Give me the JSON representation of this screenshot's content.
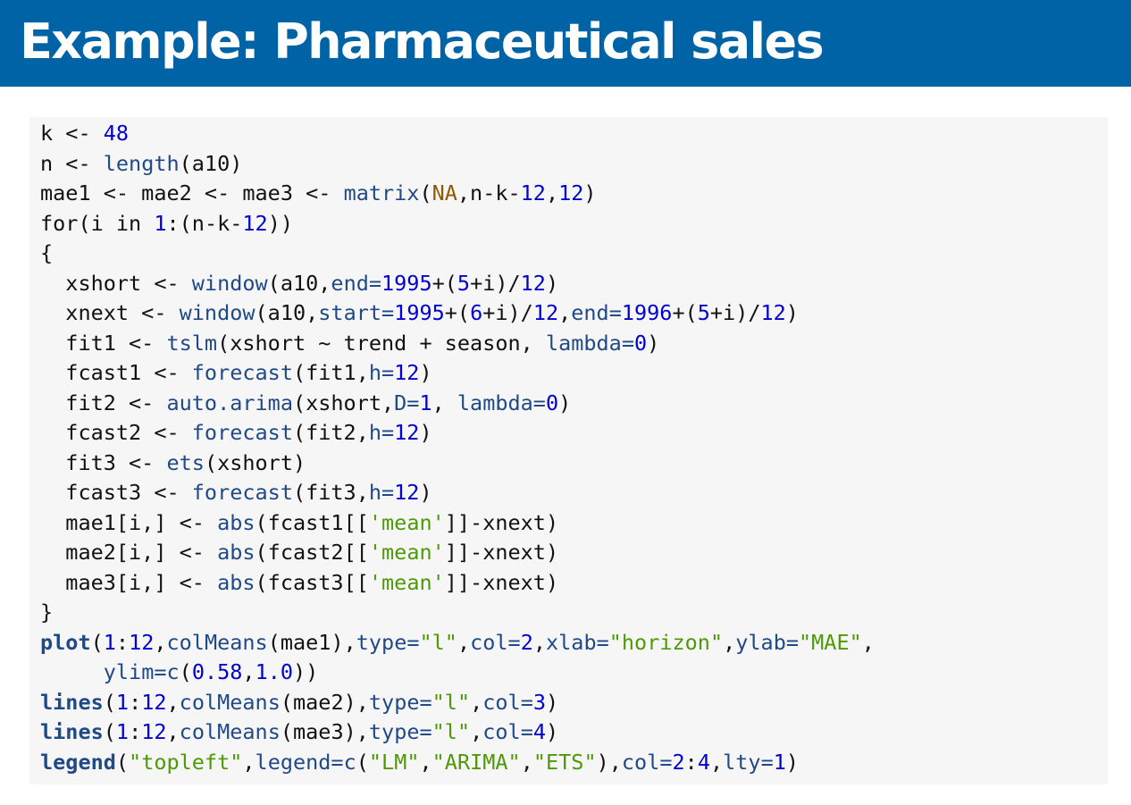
{
  "title": "Example: Pharmaceutical sales",
  "code": {
    "lines": [
      [
        {
          "t": "k <- ",
          "c": ""
        },
        {
          "t": "48",
          "c": "num"
        }
      ],
      [
        {
          "t": "n <- ",
          "c": ""
        },
        {
          "t": "length",
          "c": "fn"
        },
        {
          "t": "(a10)",
          "c": ""
        }
      ],
      [
        {
          "t": "mae1 <- mae2 <- mae3 <- ",
          "c": ""
        },
        {
          "t": "matrix",
          "c": "fn"
        },
        {
          "t": "(",
          "c": ""
        },
        {
          "t": "NA",
          "c": "na"
        },
        {
          "t": ",n-k-",
          "c": ""
        },
        {
          "t": "12",
          "c": "num"
        },
        {
          "t": ",",
          "c": ""
        },
        {
          "t": "12",
          "c": "num"
        },
        {
          "t": ")",
          "c": ""
        }
      ],
      [
        {
          "t": "for(i in ",
          "c": ""
        },
        {
          "t": "1",
          "c": "num"
        },
        {
          "t": ":(n-k-",
          "c": ""
        },
        {
          "t": "12",
          "c": "num"
        },
        {
          "t": "))",
          "c": ""
        }
      ],
      [
        {
          "t": "{",
          "c": ""
        }
      ],
      [
        {
          "t": "  xshort <- ",
          "c": ""
        },
        {
          "t": "window",
          "c": "fn"
        },
        {
          "t": "(a10,",
          "c": ""
        },
        {
          "t": "end=",
          "c": "arg"
        },
        {
          "t": "1995",
          "c": "num"
        },
        {
          "t": "+(",
          "c": ""
        },
        {
          "t": "5",
          "c": "num"
        },
        {
          "t": "+i)/",
          "c": ""
        },
        {
          "t": "12",
          "c": "num"
        },
        {
          "t": ")",
          "c": ""
        }
      ],
      [
        {
          "t": "  xnext <- ",
          "c": ""
        },
        {
          "t": "window",
          "c": "fn"
        },
        {
          "t": "(a10,",
          "c": ""
        },
        {
          "t": "start=",
          "c": "arg"
        },
        {
          "t": "1995",
          "c": "num"
        },
        {
          "t": "+(",
          "c": ""
        },
        {
          "t": "6",
          "c": "num"
        },
        {
          "t": "+i)/",
          "c": ""
        },
        {
          "t": "12",
          "c": "num"
        },
        {
          "t": ",",
          "c": ""
        },
        {
          "t": "end=",
          "c": "arg"
        },
        {
          "t": "1996",
          "c": "num"
        },
        {
          "t": "+(",
          "c": ""
        },
        {
          "t": "5",
          "c": "num"
        },
        {
          "t": "+i)/",
          "c": ""
        },
        {
          "t": "12",
          "c": "num"
        },
        {
          "t": ")",
          "c": ""
        }
      ],
      [
        {
          "t": "  fit1 <- ",
          "c": ""
        },
        {
          "t": "tslm",
          "c": "fn"
        },
        {
          "t": "(xshort ~ trend + season, ",
          "c": ""
        },
        {
          "t": "lambda=",
          "c": "arg"
        },
        {
          "t": "0",
          "c": "num"
        },
        {
          "t": ")",
          "c": ""
        }
      ],
      [
        {
          "t": "  fcast1 <- ",
          "c": ""
        },
        {
          "t": "forecast",
          "c": "fn"
        },
        {
          "t": "(fit1,",
          "c": ""
        },
        {
          "t": "h=",
          "c": "arg"
        },
        {
          "t": "12",
          "c": "num"
        },
        {
          "t": ")",
          "c": ""
        }
      ],
      [
        {
          "t": "  fit2 <- ",
          "c": ""
        },
        {
          "t": "auto.arima",
          "c": "fn"
        },
        {
          "t": "(xshort,",
          "c": ""
        },
        {
          "t": "D=",
          "c": "arg"
        },
        {
          "t": "1",
          "c": "num"
        },
        {
          "t": ", ",
          "c": ""
        },
        {
          "t": "lambda=",
          "c": "arg"
        },
        {
          "t": "0",
          "c": "num"
        },
        {
          "t": ")",
          "c": ""
        }
      ],
      [
        {
          "t": "  fcast2 <- ",
          "c": ""
        },
        {
          "t": "forecast",
          "c": "fn"
        },
        {
          "t": "(fit2,",
          "c": ""
        },
        {
          "t": "h=",
          "c": "arg"
        },
        {
          "t": "12",
          "c": "num"
        },
        {
          "t": ")",
          "c": ""
        }
      ],
      [
        {
          "t": "  fit3 <- ",
          "c": ""
        },
        {
          "t": "ets",
          "c": "fn"
        },
        {
          "t": "(xshort)",
          "c": ""
        }
      ],
      [
        {
          "t": "  fcast3 <- ",
          "c": ""
        },
        {
          "t": "forecast",
          "c": "fn"
        },
        {
          "t": "(fit3,",
          "c": ""
        },
        {
          "t": "h=",
          "c": "arg"
        },
        {
          "t": "12",
          "c": "num"
        },
        {
          "t": ")",
          "c": ""
        }
      ],
      [
        {
          "t": "  mae1[i,] <- ",
          "c": ""
        },
        {
          "t": "abs",
          "c": "fn"
        },
        {
          "t": "(fcast1[[",
          "c": ""
        },
        {
          "t": "'mean'",
          "c": "str"
        },
        {
          "t": "]]-xnext)",
          "c": ""
        }
      ],
      [
        {
          "t": "  mae2[i,] <- ",
          "c": ""
        },
        {
          "t": "abs",
          "c": "fn"
        },
        {
          "t": "(fcast2[[",
          "c": ""
        },
        {
          "t": "'mean'",
          "c": "str"
        },
        {
          "t": "]]-xnext)",
          "c": ""
        }
      ],
      [
        {
          "t": "  mae3[i,] <- ",
          "c": ""
        },
        {
          "t": "abs",
          "c": "fn"
        },
        {
          "t": "(fcast3[[",
          "c": ""
        },
        {
          "t": "'mean'",
          "c": "str"
        },
        {
          "t": "]]-xnext)",
          "c": ""
        }
      ],
      [
        {
          "t": "}",
          "c": ""
        }
      ],
      [
        {
          "t": "plot",
          "c": "kw"
        },
        {
          "t": "(",
          "c": ""
        },
        {
          "t": "1",
          "c": "num"
        },
        {
          "t": ":",
          "c": ""
        },
        {
          "t": "12",
          "c": "num"
        },
        {
          "t": ",",
          "c": ""
        },
        {
          "t": "colMeans",
          "c": "fn"
        },
        {
          "t": "(mae1),",
          "c": ""
        },
        {
          "t": "type=",
          "c": "arg"
        },
        {
          "t": "\"l\"",
          "c": "str"
        },
        {
          "t": ",",
          "c": ""
        },
        {
          "t": "col=",
          "c": "arg"
        },
        {
          "t": "2",
          "c": "num"
        },
        {
          "t": ",",
          "c": ""
        },
        {
          "t": "xlab=",
          "c": "arg"
        },
        {
          "t": "\"horizon\"",
          "c": "str"
        },
        {
          "t": ",",
          "c": ""
        },
        {
          "t": "ylab=",
          "c": "arg"
        },
        {
          "t": "\"MAE\"",
          "c": "str"
        },
        {
          "t": ",",
          "c": ""
        }
      ],
      [
        {
          "t": "     ",
          "c": ""
        },
        {
          "t": "ylim=",
          "c": "arg"
        },
        {
          "t": "c",
          "c": "fn"
        },
        {
          "t": "(",
          "c": ""
        },
        {
          "t": "0.58",
          "c": "num"
        },
        {
          "t": ",",
          "c": ""
        },
        {
          "t": "1.0",
          "c": "num"
        },
        {
          "t": "))",
          "c": ""
        }
      ],
      [
        {
          "t": "lines",
          "c": "kw"
        },
        {
          "t": "(",
          "c": ""
        },
        {
          "t": "1",
          "c": "num"
        },
        {
          "t": ":",
          "c": ""
        },
        {
          "t": "12",
          "c": "num"
        },
        {
          "t": ",",
          "c": ""
        },
        {
          "t": "colMeans",
          "c": "fn"
        },
        {
          "t": "(mae2),",
          "c": ""
        },
        {
          "t": "type=",
          "c": "arg"
        },
        {
          "t": "\"l\"",
          "c": "str"
        },
        {
          "t": ",",
          "c": ""
        },
        {
          "t": "col=",
          "c": "arg"
        },
        {
          "t": "3",
          "c": "num"
        },
        {
          "t": ")",
          "c": ""
        }
      ],
      [
        {
          "t": "lines",
          "c": "kw"
        },
        {
          "t": "(",
          "c": ""
        },
        {
          "t": "1",
          "c": "num"
        },
        {
          "t": ":",
          "c": ""
        },
        {
          "t": "12",
          "c": "num"
        },
        {
          "t": ",",
          "c": ""
        },
        {
          "t": "colMeans",
          "c": "fn"
        },
        {
          "t": "(mae3),",
          "c": ""
        },
        {
          "t": "type=",
          "c": "arg"
        },
        {
          "t": "\"l\"",
          "c": "str"
        },
        {
          "t": ",",
          "c": ""
        },
        {
          "t": "col=",
          "c": "arg"
        },
        {
          "t": "4",
          "c": "num"
        },
        {
          "t": ")",
          "c": ""
        }
      ],
      [
        {
          "t": "legend",
          "c": "kw"
        },
        {
          "t": "(",
          "c": ""
        },
        {
          "t": "\"topleft\"",
          "c": "str"
        },
        {
          "t": ",",
          "c": ""
        },
        {
          "t": "legend=",
          "c": "arg"
        },
        {
          "t": "c",
          "c": "fn"
        },
        {
          "t": "(",
          "c": ""
        },
        {
          "t": "\"LM\"",
          "c": "str"
        },
        {
          "t": ",",
          "c": ""
        },
        {
          "t": "\"ARIMA\"",
          "c": "str"
        },
        {
          "t": ",",
          "c": ""
        },
        {
          "t": "\"ETS\"",
          "c": "str"
        },
        {
          "t": "),",
          "c": ""
        },
        {
          "t": "col=",
          "c": "arg"
        },
        {
          "t": "2",
          "c": "num"
        },
        {
          "t": ":",
          "c": ""
        },
        {
          "t": "4",
          "c": "num"
        },
        {
          "t": ",",
          "c": ""
        },
        {
          "t": "lty=",
          "c": "arg"
        },
        {
          "t": "1",
          "c": "num"
        },
        {
          "t": ")",
          "c": ""
        }
      ]
    ]
  }
}
